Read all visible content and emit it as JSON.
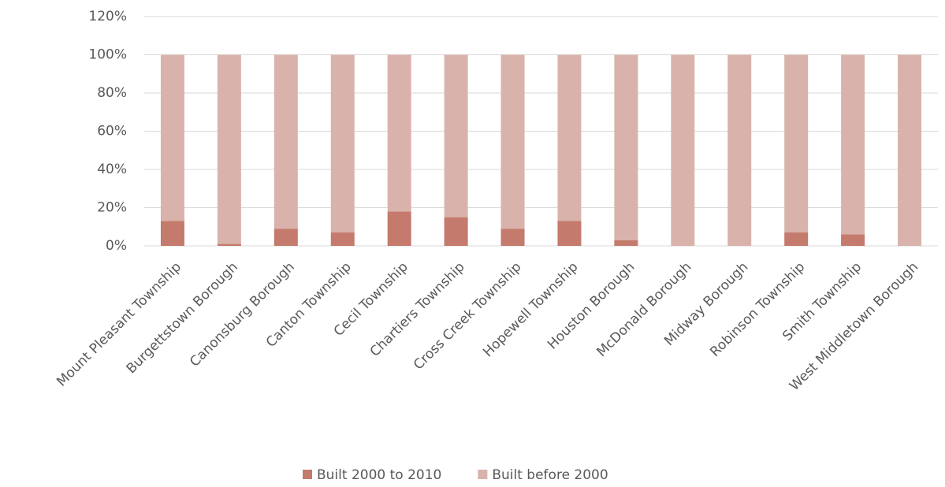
{
  "chart_data": {
    "type": "stacked_bar",
    "categories": [
      "Mount Pleasant Township",
      "Burgettstown Borough",
      "Canonsburg Borough",
      "Canton Township",
      "Cecil Township",
      "Chartiers Township",
      "Cross Creek Township",
      "Hopewell Township",
      "Houston Borough",
      "McDonald Borough",
      "Midway Borough",
      "Robinson Township",
      "Smith Township",
      "West Middletown Borough"
    ],
    "series": [
      {
        "name": "Built 2000 to 2010",
        "color": "#c47a6c",
        "values": [
          13,
          1,
          9,
          7,
          18,
          15,
          9,
          13,
          3,
          0,
          0,
          7,
          6,
          0
        ]
      },
      {
        "name": "Built before 2000",
        "color": "#d9b3ab",
        "values": [
          87,
          99,
          91,
          93,
          82,
          85,
          91,
          87,
          97,
          100,
          100,
          93,
          94,
          100
        ]
      }
    ],
    "ylim": [
      0,
      120
    ],
    "yticks": [
      {
        "value": 0,
        "label": "0%"
      },
      {
        "value": 20,
        "label": "20%"
      },
      {
        "value": 40,
        "label": "40%"
      },
      {
        "value": 60,
        "label": "60%"
      },
      {
        "value": 80,
        "label": "80%"
      },
      {
        "value": 100,
        "label": "100%"
      },
      {
        "value": 120,
        "label": "120%"
      }
    ],
    "grid": true,
    "legend": "bottom"
  }
}
